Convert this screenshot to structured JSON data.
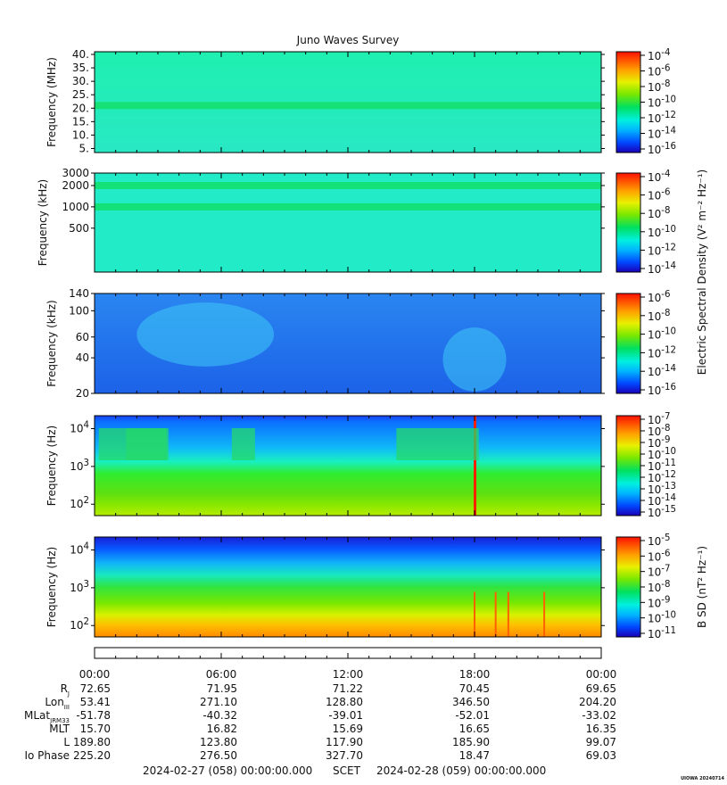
{
  "title": "Juno Waves Survey",
  "watermark": "UIOWA 20240714",
  "shared_cbar_label": "Electric Spectral Density (V² m⁻² Hz⁻¹)",
  "b_cbar_label": "B SD (nT² Hz⁻¹)",
  "chart_data": [
    {
      "type": "heatmap",
      "ylabel": "Frequency (MHz)",
      "y_scale": "linear",
      "ylim": [
        3.5,
        41
      ],
      "yticks": [
        5,
        10,
        15,
        20,
        25,
        30,
        35,
        40
      ],
      "yticklabels": [
        "5.",
        "10.",
        "15.",
        "20.",
        "25.",
        "30.",
        "35.",
        "40."
      ],
      "colorbar": {
        "ticks": [
          "10^-4",
          "10^-6",
          "10^-8",
          "10^-10",
          "10^-12",
          "10^-14",
          "10^-16"
        ]
      },
      "features": [
        {
          "kind": "band",
          "freq": 21,
          "level": "higher"
        }
      ]
    },
    {
      "type": "heatmap",
      "ylabel": "Frequency (kHz)",
      "y_scale": "log",
      "ylim": [
        120,
        3000
      ],
      "yticks": [
        3000,
        2000,
        1000,
        500
      ],
      "yticklabels": [
        "3000",
        "2000",
        "1000",
        "500"
      ],
      "colorbar": {
        "ticks": [
          "10^-4",
          "10^-6",
          "10^-8",
          "10^-10",
          "10^-12",
          "10^-14"
        ]
      },
      "features": [
        {
          "kind": "band",
          "freq": 2000,
          "level": "higher"
        },
        {
          "kind": "band",
          "freq": 1000,
          "level": "higher"
        }
      ]
    },
    {
      "type": "heatmap",
      "ylabel": "Frequency (kHz)",
      "y_scale": "log",
      "ylim": [
        20,
        140
      ],
      "yticks": [
        140,
        100,
        60,
        40,
        20
      ],
      "yticklabels": [
        "140",
        "100",
        "60",
        "40",
        "20"
      ],
      "colorbar": {
        "ticks": [
          "10^-6",
          "10^-8",
          "10^-10",
          "10^-12",
          "10^-14",
          "10^-16"
        ]
      },
      "features": [
        {
          "kind": "emission",
          "time_range": [
            2.0,
            8.5
          ],
          "level": "moderate"
        },
        {
          "kind": "emission",
          "time_range": [
            16.5,
            19.5
          ],
          "level": "moderate"
        }
      ]
    },
    {
      "type": "heatmap",
      "ylabel": "Frequency (Hz)",
      "y_scale": "log",
      "ylim": [
        50,
        22000
      ],
      "yticks": [
        10000,
        1000,
        100
      ],
      "yticklabels": [
        "10^4",
        "10^3",
        "10^2"
      ],
      "colorbar": {
        "ticks": [
          "10^-7",
          "10^-8",
          "10^-9",
          "10^-10",
          "10^-11",
          "10^-12",
          "10^-13",
          "10^-14",
          "10^-15"
        ]
      },
      "features": [
        {
          "kind": "burst",
          "time": 18.0,
          "level": "high"
        }
      ]
    },
    {
      "type": "heatmap",
      "ylabel": "Frequency (Hz)",
      "y_scale": "log",
      "ylim": [
        50,
        22000
      ],
      "yticks": [
        10000,
        1000,
        100
      ],
      "yticklabels": [
        "10^4",
        "10^3",
        "10^2"
      ],
      "colorbar": {
        "ticks": [
          "10^-5",
          "10^-6",
          "10^-7",
          "10^-8",
          "10^-9",
          "10^-10",
          "10^-11"
        ]
      },
      "features": [
        {
          "kind": "burst",
          "time": 18.0
        },
        {
          "kind": "burst",
          "time": 19.0
        },
        {
          "kind": "burst",
          "time": 19.6
        },
        {
          "kind": "burst",
          "time": 21.3
        }
      ]
    }
  ],
  "time_axis": {
    "ticks": [
      "00:00",
      "06:00",
      "12:00",
      "18:00",
      "00:00"
    ],
    "hours": [
      0,
      6,
      12,
      18,
      24
    ]
  },
  "ephemeris": [
    {
      "label": "R",
      "sub": "J",
      "values": [
        "72.65",
        "71.95",
        "71.22",
        "70.45",
        "69.65"
      ]
    },
    {
      "label": "Lon",
      "sub": "III",
      "values": [
        "53.41",
        "271.10",
        "128.80",
        "346.50",
        "204.20"
      ]
    },
    {
      "label": "MLat",
      "sub": "JRM33",
      "values": [
        "-51.78",
        "-40.32",
        "-39.01",
        "-52.01",
        "-33.02"
      ]
    },
    {
      "label": "MLT",
      "sub": "",
      "values": [
        "15.70",
        "16.82",
        "15.69",
        "16.65",
        "16.35"
      ]
    },
    {
      "label": "L",
      "sub": "",
      "values": [
        "189.80",
        "123.80",
        "117.90",
        "185.90",
        "99.07"
      ]
    },
    {
      "label": "Io Phase",
      "sub": "",
      "values": [
        "225.20",
        "276.50",
        "327.70",
        "18.47",
        "69.03"
      ]
    }
  ],
  "footer": {
    "start": "2024-02-27 (058) 00:00:00.000",
    "scet": "SCET",
    "end": "2024-02-28 (059) 00:00:00.000"
  }
}
